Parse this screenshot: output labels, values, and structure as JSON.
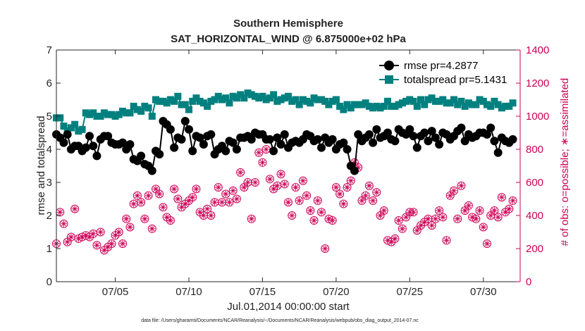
{
  "chart_data": {
    "type": "line",
    "title_line1": "Southern Hemisphere",
    "title_line2": "SAT_HORIZONTAL_WIND @ 6.875000e+02 hPa",
    "xlabel": "Jul.01,2014 00:00:00 start",
    "ylabel_left": "rmse and totalspread",
    "ylabel_right": "# of obs: o=possible; ∗=assimilated",
    "footnote": "data file: /Users/gharamti/Documents/NCAR/Reanalysis/~/Documents/NCAR/Reanalysis/webpub/obs_diag_output_2014-07.nc",
    "xlim": [
      1,
      32.5
    ],
    "ylim_left": [
      0,
      7
    ],
    "ylim_right": [
      0,
      1400
    ],
    "x_ticks": [
      5,
      10,
      15,
      20,
      25,
      30
    ],
    "x_tick_labels": [
      "07/05",
      "07/10",
      "07/15",
      "07/20",
      "07/25",
      "07/30"
    ],
    "y_ticks_left": [
      0,
      1,
      2,
      3,
      4,
      5,
      6,
      7
    ],
    "y_tick_labels_left": [
      "0",
      "1",
      "2",
      "3",
      "4",
      "5",
      "6",
      "7"
    ],
    "y_ticks_right": [
      0,
      200,
      400,
      600,
      800,
      1000,
      1200,
      1400
    ],
    "y_tick_labels_right": [
      "0",
      "200",
      "400",
      "600",
      "800",
      "1000",
      "1200",
      "1400"
    ],
    "colors": {
      "rmse": "#000000",
      "spread": "#00807f",
      "obs": "#cc0055"
    },
    "legend": {
      "position": "top-right",
      "rmse_label": "rmse pr=4.2877",
      "spread_label": "totalspread pr=5.1431"
    },
    "x": [
      1.0,
      1.25,
      1.5,
      1.75,
      2.0,
      2.25,
      2.5,
      2.75,
      3.0,
      3.25,
      3.5,
      3.75,
      4.0,
      4.25,
      4.5,
      4.75,
      5.0,
      5.25,
      5.5,
      5.75,
      6.0,
      6.25,
      6.5,
      6.75,
      7.0,
      7.25,
      7.5,
      7.75,
      8.0,
      8.25,
      8.5,
      8.75,
      9.0,
      9.25,
      9.5,
      9.75,
      10.0,
      10.25,
      10.5,
      10.75,
      11.0,
      11.25,
      11.5,
      11.75,
      12.0,
      12.25,
      12.5,
      12.75,
      13.0,
      13.25,
      13.5,
      13.75,
      14.0,
      14.25,
      14.5,
      14.75,
      15.0,
      15.25,
      15.5,
      15.75,
      16.0,
      16.25,
      16.5,
      16.75,
      17.0,
      17.25,
      17.5,
      17.75,
      18.0,
      18.25,
      18.5,
      18.75,
      19.0,
      19.25,
      19.5,
      19.75,
      20.0,
      20.25,
      20.5,
      20.75,
      21.0,
      21.25,
      21.5,
      21.75,
      22.0,
      22.25,
      22.5,
      22.75,
      23.0,
      23.25,
      23.5,
      23.75,
      24.0,
      24.25,
      24.5,
      24.75,
      25.0,
      25.25,
      25.5,
      25.75,
      26.0,
      26.25,
      26.5,
      26.75,
      27.0,
      27.25,
      27.5,
      27.75,
      28.0,
      28.25,
      28.5,
      28.75,
      29.0,
      29.25,
      29.5,
      29.75,
      30.0,
      30.25,
      30.5,
      30.75,
      31.0,
      31.25,
      31.5,
      31.75,
      32.0
    ],
    "rmse": [
      4.45,
      4.35,
      4.2,
      4.45,
      4.0,
      4.1,
      4.1,
      3.95,
      4.05,
      4.4,
      4.1,
      3.8,
      4.3,
      4.4,
      4.4,
      4.2,
      4.15,
      4.15,
      4.2,
      4.0,
      4.15,
      3.7,
      3.65,
      3.8,
      3.55,
      3.5,
      3.35,
      3.95,
      3.85,
      4.85,
      4.75,
      4.6,
      4.05,
      4.35,
      4.3,
      4.85,
      4.6,
      3.95,
      4.4,
      4.35,
      4.15,
      4.4,
      4.45,
      3.85,
      4.0,
      4.1,
      3.95,
      4.25,
      4.2,
      4.0,
      4.35,
      4.35,
      4.4,
      4.3,
      4.5,
      4.45,
      4.45,
      4.3,
      4.3,
      3.95,
      4.35,
      4.15,
      4.45,
      4.05,
      4.2,
      4.25,
      4.2,
      4.3,
      4.45,
      4.4,
      4.25,
      4.3,
      4.05,
      4.35,
      4.2,
      4.3,
      4.0,
      4.15,
      4.2,
      4.0,
      3.5,
      3.35,
      4.45,
      4.25,
      4.35,
      4.45,
      4.2,
      4.6,
      4.35,
      4.4,
      4.5,
      4.3,
      4.25,
      4.6,
      4.5,
      4.45,
      4.6,
      4.4,
      4.05,
      4.4,
      4.5,
      4.25,
      4.55,
      4.35,
      4.15,
      4.5,
      4.45,
      4.3,
      4.4,
      4.55,
      4.65,
      4.25,
      4.45,
      4.35,
      4.4,
      4.5,
      4.5,
      4.45,
      4.65,
      4.25,
      3.9,
      4.35,
      4.25,
      4.2,
      4.3
    ],
    "spread": [
      4.95,
      4.95,
      4.7,
      4.55,
      4.65,
      4.75,
      4.55,
      4.6,
      5.1,
      5.05,
      5.1,
      5.0,
      5.0,
      5.1,
      5.05,
      5.05,
      5.0,
      5.05,
      5.15,
      5.1,
      5.1,
      5.3,
      5.2,
      5.15,
      5.3,
      5.25,
      5.0,
      5.5,
      5.45,
      5.45,
      5.4,
      5.5,
      5.45,
      5.6,
      5.35,
      5.35,
      5.2,
      5.45,
      5.55,
      5.45,
      5.4,
      5.3,
      5.45,
      5.5,
      5.6,
      5.5,
      5.55,
      5.4,
      5.6,
      5.55,
      5.65,
      5.55,
      5.7,
      5.65,
      5.6,
      5.55,
      5.6,
      5.5,
      5.55,
      5.65,
      5.45,
      5.5,
      5.55,
      5.6,
      5.45,
      5.5,
      5.35,
      5.5,
      5.45,
      5.4,
      5.55,
      5.5,
      5.5,
      5.45,
      5.35,
      5.45,
      5.5,
      5.3,
      5.2,
      5.35,
      5.25,
      5.35,
      5.35,
      5.35,
      5.4,
      5.3,
      5.25,
      5.3,
      5.25,
      5.3,
      5.45,
      5.3,
      5.3,
      5.35,
      5.4,
      5.45,
      5.5,
      5.45,
      5.3,
      5.5,
      5.35,
      5.5,
      5.55,
      5.45,
      5.45,
      5.5,
      5.4,
      5.4,
      5.5,
      5.35,
      5.45,
      5.3,
      5.4,
      5.35,
      5.35,
      5.5,
      5.45,
      5.35,
      5.3,
      5.45,
      5.35,
      5.25,
      5.3,
      5.3,
      5.4
    ],
    "obs_possible": [
      230,
      420,
      350,
      240,
      270,
      440,
      260,
      270,
      280,
      270,
      290,
      220,
      300,
      190,
      210,
      230,
      280,
      300,
      230,
      380,
      330,
      470,
      520,
      480,
      380,
      520,
      320,
      560,
      530,
      450,
      390,
      370,
      560,
      500,
      450,
      470,
      490,
      510,
      560,
      420,
      400,
      440,
      400,
      480,
      570,
      480,
      530,
      480,
      550,
      500,
      660,
      570,
      600,
      380,
      600,
      780,
      720,
      800,
      620,
      560,
      580,
      650,
      590,
      480,
      400,
      570,
      490,
      610,
      520,
      430,
      370,
      490,
      420,
      200,
      380,
      370,
      570,
      530,
      470,
      570,
      610,
      720,
      690,
      490,
      520,
      580,
      490,
      540,
      400,
      430,
      250,
      240,
      260,
      370,
      320,
      390,
      420,
      420,
      310,
      340,
      360,
      380,
      340,
      380,
      430,
      390,
      250,
      520,
      550,
      380,
      580,
      430,
      460,
      390,
      380,
      430,
      330,
      230,
      400,
      430,
      390,
      510,
      420,
      440,
      490,
      540,
      380
    ],
    "obs_possible_gaps": [],
    "obs_assimilated": [
      230,
      420,
      350,
      240,
      270,
      440,
      260,
      270,
      280,
      270,
      290,
      220,
      300,
      190,
      210,
      230,
      280,
      300,
      230,
      380,
      330,
      470,
      520,
      480,
      380,
      520,
      320,
      560,
      530,
      450,
      390,
      370,
      560,
      500,
      450,
      470,
      490,
      510,
      560,
      420,
      400,
      440,
      400,
      480,
      570,
      480,
      530,
      480,
      550,
      500,
      660,
      570,
      600,
      380,
      600,
      780,
      720,
      800,
      620,
      560,
      580,
      650,
      590,
      480,
      400,
      570,
      490,
      610,
      520,
      430,
      370,
      490,
      420,
      200,
      380,
      370,
      570,
      530,
      470,
      570,
      610,
      720,
      690,
      490,
      520,
      580,
      490,
      540,
      400,
      430,
      250,
      240,
      260,
      370,
      320,
      390,
      420,
      420,
      310,
      340,
      360,
      380,
      340,
      380,
      430,
      390,
      250,
      520,
      550,
      380,
      580,
      430,
      460,
      390,
      380,
      430,
      330,
      230,
      400,
      430,
      390,
      510,
      420,
      440,
      490,
      540,
      380
    ]
  }
}
